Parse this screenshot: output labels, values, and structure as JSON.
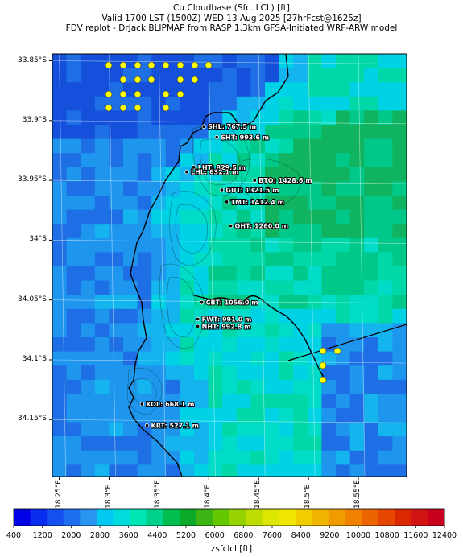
{
  "title": {
    "line1": "Cu Cloudbase (Sfc. LCL) [ft]",
    "line2": "Valid 1700 LST (1500Z) WED 13 Aug 2025 [27hrFcst@1625z]",
    "line3": "FDV replot - DrJack BLIPMAP from RASP 1.3km GFSA-Initiated WRF-ARW model"
  },
  "y_axis": {
    "ticks": [
      "33.85°S",
      "33.9°S",
      "33.95°S",
      "34°S",
      "34.05°S",
      "34.1°S",
      "34.15°S"
    ]
  },
  "x_axis": {
    "ticks": [
      "18.25°E",
      "18.3°E",
      "18.35°E",
      "18.4°E",
      "18.45°E",
      "18.5°E",
      "18.55°E"
    ]
  },
  "sites": [
    {
      "label": "SHL: 767.5 m",
      "lon": 18.395,
      "lat": -33.905
    },
    {
      "label": "SHT: 993.6 m",
      "lon": 18.408,
      "lat": -33.914
    },
    {
      "label": "LHT: 829.5 m",
      "lon": 18.385,
      "lat": -33.939
    },
    {
      "label": "LHL: 632.1 m",
      "lon": 18.378,
      "lat": -33.943
    },
    {
      "label": "BTO: 1428.6 m",
      "lon": 18.446,
      "lat": -33.95
    },
    {
      "label": "GUT: 1321.5 m",
      "lon": 18.413,
      "lat": -33.958
    },
    {
      "label": "TMT: 1412.4 m",
      "lon": 18.418,
      "lat": -33.968
    },
    {
      "label": "OHT: 1260.0 m",
      "lon": 18.422,
      "lat": -33.988
    },
    {
      "label": "CBT: 1056.0 m",
      "lon": 18.393,
      "lat": -34.052
    },
    {
      "label": "FWT: 991.0 m",
      "lon": 18.389,
      "lat": -34.066
    },
    {
      "label": "NHT: 992.8 m",
      "lon": 18.389,
      "lat": -34.072
    },
    {
      "label": "KOL: 668.1 m",
      "lon": 18.333,
      "lat": -34.137
    },
    {
      "label": "KRT: 527.1 m",
      "lon": 18.338,
      "lat": -34.155
    }
  ],
  "colorbar": {
    "ticks": [
      "400",
      "1200",
      "2000",
      "2800",
      "3600",
      "4400",
      "5200",
      "6000",
      "6800",
      "7600",
      "8400",
      "9200",
      "10000",
      "10800",
      "11600",
      "12400"
    ],
    "label": "zsfclcl [ft]",
    "colors": [
      "#0000e6",
      "#0a2ef0",
      "#1450f0",
      "#1e6ef0",
      "#2896f0",
      "#00c8f0",
      "#00dcdc",
      "#00e6b4",
      "#00d28c",
      "#00be50",
      "#0aaa28",
      "#3cb414",
      "#64c800",
      "#96d200",
      "#bedc00",
      "#dce600",
      "#f0e600",
      "#f0cc00",
      "#f0b400",
      "#f09b00",
      "#f08200",
      "#eb6400",
      "#e64600",
      "#dc2800",
      "#d21414",
      "#c8001e"
    ]
  },
  "field_colors": {
    "deep_blue": "#1450dc",
    "blue": "#1e6ee6",
    "azure": "#1e96ee",
    "light_blue": "#14b4ee",
    "cyan": "#00d2e6",
    "cyan_green": "#00dcc8",
    "teal": "#00d8a8",
    "green": "#00c888",
    "dark_green": "#10b460",
    "marker_yellow": "#ffff00"
  }
}
